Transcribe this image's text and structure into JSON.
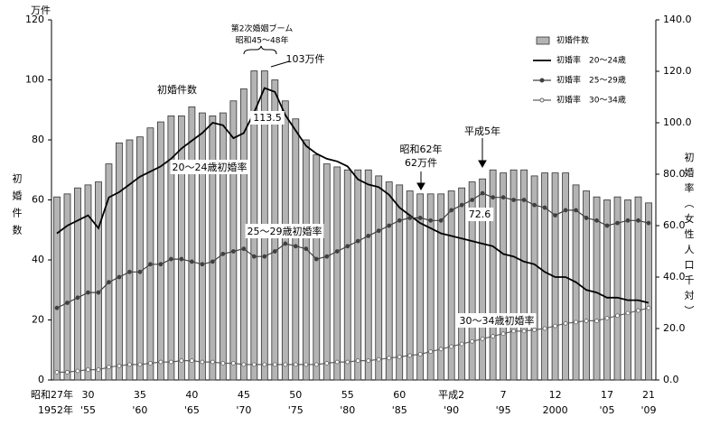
{
  "chart_data": {
    "type": "combo",
    "y_unit": "万件",
    "ylabel": "初婚件数",
    "y2label": "初婚率（女性人口千対）",
    "categories": [
      "昭和27年",
      null,
      null,
      "30",
      null,
      null,
      null,
      null,
      "35",
      null,
      null,
      null,
      null,
      "40",
      null,
      null,
      null,
      null,
      "45",
      null,
      null,
      null,
      null,
      "50",
      null,
      null,
      null,
      null,
      "55",
      null,
      null,
      null,
      null,
      "60",
      null,
      null,
      null,
      null,
      "平成2",
      null,
      null,
      null,
      null,
      "7",
      null,
      null,
      null,
      null,
      "12",
      null,
      null,
      null,
      null,
      "17",
      null,
      null,
      null,
      "21"
    ],
    "categories_western": [
      "1952年",
      null,
      null,
      "'55",
      null,
      null,
      null,
      null,
      "'60",
      null,
      null,
      null,
      null,
      "'65",
      null,
      null,
      null,
      null,
      "'70",
      null,
      null,
      null,
      null,
      "'75",
      null,
      null,
      null,
      null,
      "'80",
      null,
      null,
      null,
      null,
      "'85",
      null,
      null,
      null,
      null,
      "'90",
      null,
      null,
      null,
      null,
      "'95",
      null,
      null,
      null,
      null,
      "2000",
      null,
      null,
      null,
      null,
      "'05",
      null,
      null,
      null,
      "'09"
    ],
    "series": [
      {
        "name": "初婚件数",
        "type": "bar",
        "axis": "y",
        "color": "#b4b4b4",
        "values": [
          61,
          62,
          64,
          65,
          66,
          72,
          79,
          80,
          81,
          84,
          86,
          88,
          88,
          91,
          89,
          88,
          89,
          93,
          97,
          103,
          103,
          100,
          93,
          87,
          80,
          75,
          72,
          71,
          70,
          70,
          70,
          68,
          66,
          65,
          63,
          62,
          62,
          62,
          63,
          64,
          66,
          67,
          70,
          69,
          70,
          70,
          68,
          69,
          69,
          69,
          65,
          63,
          61,
          60,
          61,
          60,
          61,
          59
        ]
      },
      {
        "name": "初婚率　20～24歳",
        "type": "line",
        "axis": "y2",
        "color": "#000000",
        "marker": "none",
        "values": [
          57,
          60,
          62,
          64,
          59,
          71,
          73,
          76,
          79,
          81,
          83,
          86,
          90,
          93,
          96,
          100,
          99,
          94,
          96,
          104,
          113.5,
          112,
          103,
          97,
          91,
          88,
          86,
          85,
          83,
          78,
          76,
          75,
          72,
          67,
          64,
          61,
          59,
          57,
          56,
          55,
          54,
          53,
          52,
          49,
          48,
          46,
          45,
          42,
          40,
          40,
          38,
          35,
          34,
          32,
          32,
          31,
          31,
          30
        ]
      },
      {
        "name": "初婚率　25～29歳",
        "type": "line",
        "axis": "y2",
        "color": "#404040",
        "marker": "filled",
        "values": [
          28,
          30,
          32,
          34,
          34,
          38,
          40,
          42,
          42,
          45,
          45,
          47,
          47,
          46,
          45,
          46,
          49,
          50,
          51,
          48,
          48,
          50,
          53,
          52,
          51,
          47,
          48,
          50,
          52,
          54,
          56,
          58,
          60,
          62,
          63,
          63,
          62,
          62,
          66,
          68,
          70,
          72.6,
          71,
          71,
          70,
          70,
          68,
          67,
          64,
          66,
          66,
          63,
          62,
          60,
          61,
          62,
          62,
          61
        ]
      },
      {
        "name": "初婚率　30～34歳",
        "type": "line",
        "axis": "y2",
        "color": "#606060",
        "marker": "open",
        "values": [
          3,
          3,
          3.5,
          4,
          4,
          5,
          5.5,
          6,
          6,
          6.5,
          7,
          7,
          7.5,
          7.5,
          7,
          7,
          6.5,
          6.5,
          6,
          6,
          6,
          6,
          6,
          6,
          6,
          6,
          6.5,
          7,
          7,
          7.5,
          7.5,
          8,
          8.5,
          9,
          9.5,
          10,
          11,
          12,
          13,
          14,
          15,
          16,
          17,
          18,
          19,
          19,
          19.5,
          20,
          21,
          22,
          22.5,
          23,
          23,
          24,
          25,
          26,
          27,
          28
        ]
      }
    ],
    "ylim": [
      0,
      120
    ],
    "yticks": [
      0,
      20,
      40,
      60,
      80,
      100,
      120
    ],
    "y2lim": [
      0,
      140
    ],
    "y2ticks": [
      {
        "value": 0,
        "label": "0.0"
      },
      {
        "value": 20,
        "label": "20.0"
      },
      {
        "value": 40,
        "label": "40.0"
      },
      {
        "value": 60,
        "label": "60.0"
      },
      {
        "value": 80,
        "label": "80.0"
      },
      {
        "value": 100,
        "label": "100.0"
      },
      {
        "value": 120,
        "label": "120.0"
      },
      {
        "value": 140,
        "label": "140.0"
      }
    ],
    "annotations": [
      "第2次婚姻ブーム",
      "昭和45～48年",
      "103万件",
      "初婚件数",
      "20～24歳初婚率",
      "25～29歳初婚率",
      "昭和62年",
      "62万件",
      "平成5年",
      "30～34歳初婚率"
    ],
    "legend": "upper right"
  }
}
